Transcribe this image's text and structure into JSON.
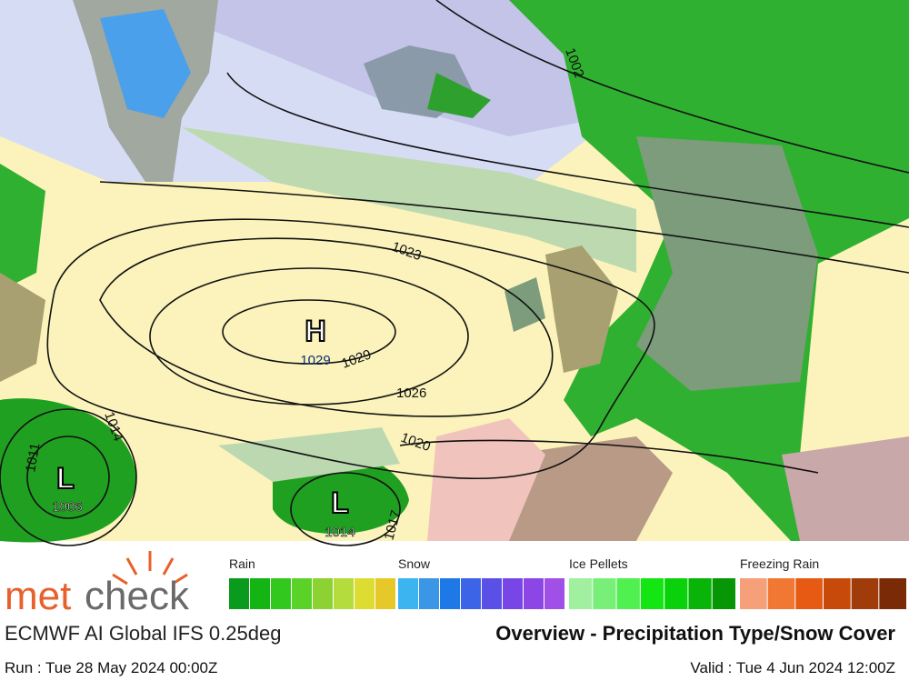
{
  "map": {
    "isobar_labels": [
      1002,
      1023,
      1029,
      1026,
      1020,
      1014,
      1011,
      1017
    ],
    "highs": [
      {
        "symbol": "H",
        "value": 1029
      }
    ],
    "lows": [
      {
        "symbol": "L",
        "value": 1006
      },
      {
        "symbol": "L",
        "value": 1014
      }
    ]
  },
  "legend": {
    "groups": [
      {
        "name": "Rain",
        "colors": [
          "#0a9a1e",
          "#14b414",
          "#32c81e",
          "#5ad228",
          "#8cd232",
          "#b4dc3c",
          "#dcdc32",
          "#e6c828"
        ]
      },
      {
        "name": "Snow",
        "colors": [
          "#3cb4f0",
          "#3c96e6",
          "#1e78e6",
          "#3c64e6",
          "#5a50e6",
          "#7846e6",
          "#8c46e6",
          "#a050e6"
        ]
      },
      {
        "name": "Ice Pellets",
        "colors": [
          "#a0f0a0",
          "#78f078",
          "#50f050",
          "#14e614",
          "#0ad20a",
          "#08b408",
          "#069606"
        ]
      },
      {
        "name": "Freezing Rain",
        "colors": [
          "#f5a078",
          "#f07832",
          "#e65a14",
          "#c84a0a",
          "#a03c0a",
          "#7a2a06"
        ]
      }
    ]
  },
  "brand": {
    "part1": "met",
    "part2": "check"
  },
  "model": "ECMWF AI Global IFS 0.25deg",
  "title": "Overview - Precipitation Type/Snow Cover",
  "run": "Run : Tue 28 May 2024 00:00Z",
  "valid": "Valid : Tue 4 Jun 2024 12:00Z"
}
